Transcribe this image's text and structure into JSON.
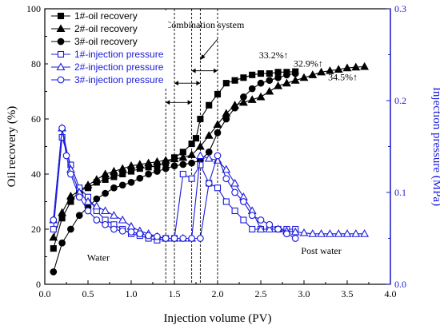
{
  "chart_data": {
    "type": "line",
    "xlabel": "Injection volume (PV)",
    "ylabel_left": "Oil recovery (%)",
    "ylabel_right": "Injection pressure (MPa)",
    "xlim": [
      0.0,
      4.0
    ],
    "ylim_left": [
      0,
      100
    ],
    "ylim_right": [
      0.0,
      0.3
    ],
    "x_ticks": [
      "0.0",
      "0.5",
      "1.0",
      "1.5",
      "2.0",
      "2.5",
      "3.0",
      "3.5",
      "4.0"
    ],
    "y_left_ticks": [
      "0",
      "20",
      "40",
      "60",
      "80",
      "100"
    ],
    "y_right_ticks": [
      "0.0",
      "0.1",
      "0.2",
      "0.3"
    ],
    "colors": {
      "black": "#000000",
      "blue": "#1a1adb"
    },
    "series": [
      {
        "name": "1#-oil recovery",
        "axis": "left",
        "marker": "square",
        "filled": true,
        "color": "#000000",
        "x": [
          0.1,
          0.2,
          0.3,
          0.4,
          0.5,
          0.6,
          0.7,
          0.8,
          0.9,
          1.0,
          1.1,
          1.2,
          1.3,
          1.4,
          1.5,
          1.6,
          1.7,
          1.75,
          1.8,
          1.9,
          2.0,
          2.1,
          2.2,
          2.3,
          2.4,
          2.5,
          2.6,
          2.7,
          2.8,
          2.9
        ],
        "y": [
          13,
          24,
          30,
          34,
          35,
          37,
          38,
          39,
          40,
          41,
          42,
          42.5,
          43,
          44,
          46,
          48,
          51,
          53,
          60,
          65,
          69,
          73,
          74,
          75,
          76,
          76.5,
          76.5,
          77,
          77,
          77.2
        ]
      },
      {
        "name": "2#-oil recovery",
        "axis": "left",
        "marker": "triangle",
        "filled": true,
        "color": "#000000",
        "x": [
          0.1,
          0.2,
          0.3,
          0.4,
          0.5,
          0.6,
          0.7,
          0.8,
          0.9,
          1.0,
          1.1,
          1.2,
          1.3,
          1.4,
          1.5,
          1.6,
          1.7,
          1.8,
          1.9,
          2.0,
          2.1,
          2.2,
          2.3,
          2.4,
          2.5,
          2.6,
          2.7,
          2.8,
          2.9,
          3.0,
          3.1,
          3.2,
          3.3,
          3.4,
          3.5,
          3.6,
          3.7
        ],
        "y": [
          17,
          26,
          32,
          34,
          36,
          38,
          40,
          41,
          42,
          43,
          43.5,
          44,
          44.5,
          45,
          45.5,
          46,
          47,
          50,
          54,
          58,
          62,
          65,
          66,
          67,
          68,
          70,
          72,
          73,
          74,
          75,
          76,
          77,
          77.5,
          78,
          78.5,
          78.8,
          79
        ]
      },
      {
        "name": "3#-oil recovery",
        "axis": "left",
        "marker": "circle",
        "filled": true,
        "color": "#000000",
        "x": [
          0.1,
          0.2,
          0.3,
          0.4,
          0.5,
          0.6,
          0.7,
          0.8,
          0.9,
          1.0,
          1.1,
          1.2,
          1.3,
          1.4,
          1.5,
          1.6,
          1.7,
          1.8,
          1.9,
          2.0,
          2.1,
          2.2,
          2.3,
          2.4,
          2.5,
          2.6,
          2.7,
          2.8,
          2.9
        ],
        "y": [
          4.5,
          15,
          20,
          25,
          28,
          31,
          33,
          35,
          36,
          37,
          38.5,
          40,
          41,
          42,
          43,
          43.5,
          44,
          45,
          48,
          55,
          60,
          64,
          68,
          71,
          73,
          74,
          75,
          76,
          76.5
        ]
      },
      {
        "name": "1#-injection pressure",
        "axis": "right",
        "marker": "square",
        "filled": false,
        "color": "#1a1adb",
        "x": [
          0.1,
          0.2,
          0.3,
          0.4,
          0.5,
          0.6,
          0.7,
          0.8,
          0.9,
          1.0,
          1.1,
          1.2,
          1.3,
          1.4,
          1.5,
          1.6,
          1.7,
          1.8,
          1.9,
          2.0,
          2.1,
          2.2,
          2.3,
          2.4,
          2.5,
          2.6,
          2.7,
          2.8,
          2.9
        ],
        "y": [
          0.06,
          0.16,
          0.13,
          0.105,
          0.095,
          0.08,
          0.07,
          0.065,
          0.06,
          0.055,
          0.053,
          0.05,
          0.048,
          0.05,
          0.05,
          0.12,
          0.115,
          0.13,
          0.11,
          0.105,
          0.09,
          0.08,
          0.07,
          0.06,
          0.06,
          0.06,
          0.06,
          0.06,
          0.06
        ]
      },
      {
        "name": "2#-injection pressure",
        "axis": "right",
        "marker": "triangle",
        "filled": false,
        "color": "#1a1adb",
        "x": [
          0.1,
          0.2,
          0.3,
          0.4,
          0.5,
          0.6,
          0.7,
          0.8,
          0.9,
          1.0,
          1.1,
          1.2,
          1.3,
          1.4,
          1.5,
          1.6,
          1.7,
          1.8,
          1.9,
          2.0,
          2.1,
          2.2,
          2.3,
          2.4,
          2.5,
          2.6,
          2.7,
          2.8,
          2.9,
          3.0,
          3.1,
          3.2,
          3.3,
          3.4,
          3.5,
          3.6,
          3.7
        ],
        "y": [
          0.07,
          0.17,
          0.125,
          0.1,
          0.09,
          0.085,
          0.08,
          0.075,
          0.07,
          0.063,
          0.058,
          0.055,
          0.052,
          0.05,
          0.05,
          0.05,
          0.05,
          0.14,
          0.137,
          0.135,
          0.125,
          0.11,
          0.095,
          0.08,
          0.06,
          0.06,
          0.06,
          0.058,
          0.057,
          0.056,
          0.055,
          0.055,
          0.055,
          0.055,
          0.055,
          0.055,
          0.055
        ]
      },
      {
        "name": "3#-injection pressure",
        "axis": "right",
        "marker": "circle",
        "filled": false,
        "color": "#1a1adb",
        "x": [
          0.1,
          0.2,
          0.25,
          0.3,
          0.4,
          0.5,
          0.6,
          0.7,
          0.8,
          0.9,
          1.0,
          1.1,
          1.2,
          1.3,
          1.4,
          1.5,
          1.6,
          1.7,
          1.8,
          1.9,
          2.0,
          2.1,
          2.2,
          2.3,
          2.4,
          2.5,
          2.6,
          2.7,
          2.8,
          2.9
        ],
        "y": [
          0.07,
          0.17,
          0.14,
          0.12,
          0.095,
          0.08,
          0.07,
          0.065,
          0.06,
          0.058,
          0.057,
          0.055,
          0.053,
          0.052,
          0.05,
          0.05,
          0.05,
          0.05,
          0.05,
          0.11,
          0.14,
          0.115,
          0.1,
          0.09,
          0.075,
          0.07,
          0.065,
          0.06,
          0.055,
          0.05
        ]
      }
    ],
    "vlines": [
      1.4,
      1.5,
      1.7,
      1.8,
      2.0
    ],
    "annotations": [
      {
        "text": "Combination system",
        "x": 1.85,
        "y": 93
      },
      {
        "text": "33.2%↑",
        "x": 2.65,
        "y": 82
      },
      {
        "text": "32.9%↑",
        "x": 3.05,
        "y": 79
      },
      {
        "text": "34.5%↑",
        "x": 3.45,
        "y": 74
      },
      {
        "text": "Water",
        "x": 0.62,
        "y": 8.5
      },
      {
        "text": "Post water",
        "x": 3.2,
        "y": 11
      }
    ]
  }
}
